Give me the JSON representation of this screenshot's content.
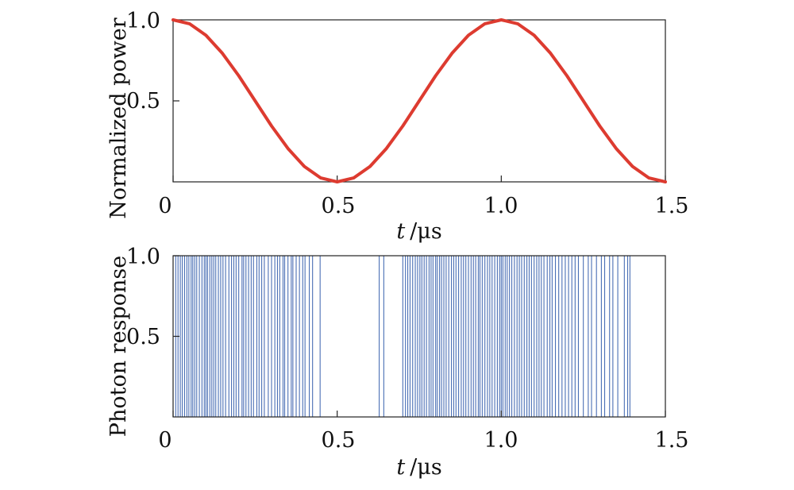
{
  "chart_data": [
    {
      "type": "line",
      "ylabel": "Normalized power",
      "xlabel_var": "t",
      "xlabel_unit": "/μs",
      "xlim": [
        0,
        1.5
      ],
      "ylim": [
        0,
        1.0
      ],
      "xticks": [
        "0",
        "0.5",
        "1.0",
        "1.5"
      ],
      "yticks": [
        "0.5",
        "1.0"
      ],
      "grid": false,
      "line_color": "#dd3b30",
      "series": [
        {
          "x": [
            0,
            0.05,
            0.1,
            0.15,
            0.2,
            0.25,
            0.3,
            0.35,
            0.4,
            0.45,
            0.5,
            0.55,
            0.6,
            0.65,
            0.7,
            0.75,
            0.8,
            0.85,
            0.9,
            0.95,
            1.0,
            1.05,
            1.1,
            1.15,
            1.2,
            1.25,
            1.3,
            1.35,
            1.4,
            1.45,
            1.5
          ],
          "values": [
            1.0,
            0.976,
            0.905,
            0.794,
            0.655,
            0.5,
            0.345,
            0.206,
            0.095,
            0.024,
            0.0,
            0.024,
            0.095,
            0.206,
            0.345,
            0.5,
            0.655,
            0.794,
            0.905,
            0.976,
            1.0,
            0.976,
            0.905,
            0.794,
            0.655,
            0.5,
            0.345,
            0.206,
            0.095,
            0.024,
            0.0
          ]
        }
      ]
    },
    {
      "type": "bar",
      "ylabel": "Photon response",
      "xlabel_var": "t",
      "xlabel_unit": "/μs",
      "xlim": [
        0,
        1.5
      ],
      "ylim": [
        0,
        1.0
      ],
      "xticks": [
        "0",
        "0.5",
        "1.0",
        "1.5"
      ],
      "yticks": [
        "0.5",
        "1.0"
      ],
      "grid": false,
      "spike_color": "#4a6fb5",
      "spike_height": 1.0,
      "spike_times": [
        0.008,
        0.015,
        0.022,
        0.028,
        0.035,
        0.042,
        0.048,
        0.055,
        0.06,
        0.066,
        0.072,
        0.08,
        0.088,
        0.095,
        0.1,
        0.105,
        0.112,
        0.118,
        0.124,
        0.13,
        0.138,
        0.145,
        0.152,
        0.16,
        0.17,
        0.178,
        0.185,
        0.192,
        0.2,
        0.21,
        0.215,
        0.222,
        0.23,
        0.238,
        0.245,
        0.255,
        0.262,
        0.27,
        0.278,
        0.29,
        0.3,
        0.31,
        0.318,
        0.325,
        0.335,
        0.34,
        0.35,
        0.36,
        0.365,
        0.375,
        0.385,
        0.395,
        0.402,
        0.415,
        0.425,
        0.448,
        0.628,
        0.642,
        0.7,
        0.708,
        0.715,
        0.722,
        0.73,
        0.738,
        0.745,
        0.752,
        0.758,
        0.765,
        0.772,
        0.78,
        0.786,
        0.792,
        0.8,
        0.805,
        0.812,
        0.818,
        0.825,
        0.832,
        0.84,
        0.848,
        0.855,
        0.862,
        0.87,
        0.878,
        0.885,
        0.892,
        0.9,
        0.908,
        0.915,
        0.922,
        0.93,
        0.935,
        0.942,
        0.95,
        0.958,
        0.965,
        0.972,
        0.98,
        0.988,
        0.995,
        1.0,
        1.005,
        1.012,
        1.018,
        1.025,
        1.032,
        1.04,
        1.048,
        1.055,
        1.062,
        1.07,
        1.078,
        1.085,
        1.092,
        1.1,
        1.108,
        1.115,
        1.122,
        1.13,
        1.14,
        1.148,
        1.155,
        1.165,
        1.175,
        1.185,
        1.195,
        1.205,
        1.215,
        1.225,
        1.235,
        1.25,
        1.265,
        1.275,
        1.29,
        1.305,
        1.315,
        1.33,
        1.34,
        1.355,
        1.375,
        1.385,
        1.392
      ]
    }
  ]
}
